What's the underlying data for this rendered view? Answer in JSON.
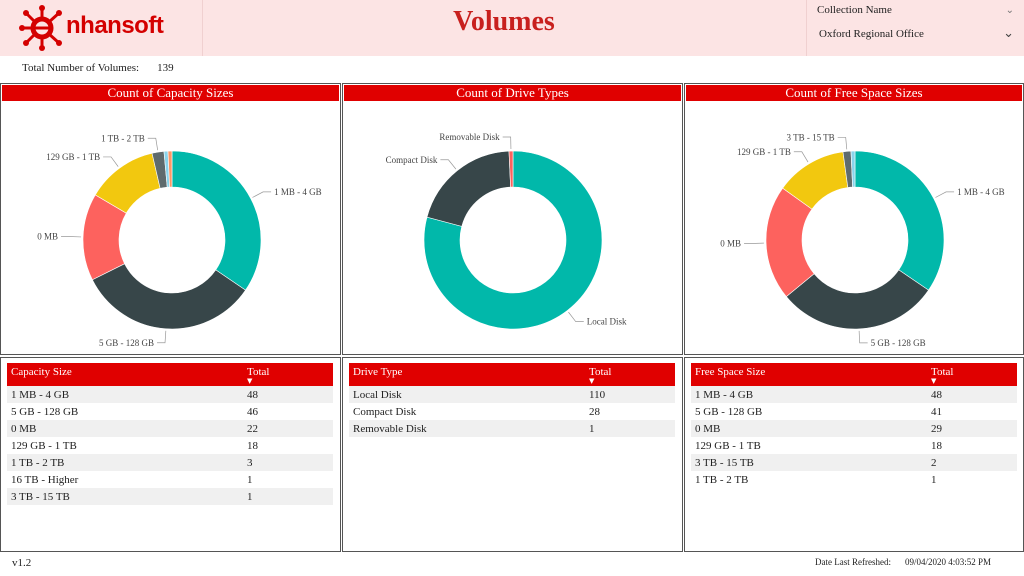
{
  "header": {
    "logo_text": "nhansoft",
    "title": "Volumes"
  },
  "slicer": {
    "label": "Collection Name",
    "value": "Oxford Regional Office"
  },
  "summary": {
    "label": "Total Number of Volumes:",
    "value": "139"
  },
  "colors": {
    "accent": "#e00000",
    "teal": "#01b8aa",
    "dark": "#374649",
    "red": "#fd625e",
    "yellow": "#f2c80f",
    "gray": "#5f6b6d",
    "blue": "#8ad4eb",
    "orange": "#fe9666"
  },
  "charts": {
    "capacity": {
      "title": "Count of Capacity Sizes",
      "slices": [
        {
          "label": "1 MB - 4 GB",
          "value": 48,
          "color": "#01b8aa"
        },
        {
          "label": "5 GB - 128 GB",
          "value": 46,
          "color": "#374649"
        },
        {
          "label": "0 MB",
          "value": 22,
          "color": "#fd625e"
        },
        {
          "label": "129 GB - 1 TB",
          "value": 18,
          "color": "#f2c80f"
        },
        {
          "label": "1 TB - 2 TB",
          "value": 3,
          "color": "#5f6b6d"
        },
        {
          "label": "16 TB - Higher",
          "value": 1,
          "color": "#8ad4eb"
        },
        {
          "label": "3 TB - 15 TB",
          "value": 1,
          "color": "#fe9666"
        }
      ]
    },
    "drive": {
      "title": "Count of Drive Types",
      "slices": [
        {
          "label": "Local Disk",
          "value": 110,
          "color": "#01b8aa"
        },
        {
          "label": "Compact Disk",
          "value": 28,
          "color": "#374649"
        },
        {
          "label": "Removable Disk",
          "value": 1,
          "color": "#fd625e"
        }
      ]
    },
    "free": {
      "title": "Count of Free Space Sizes",
      "slices": [
        {
          "label": "1 MB - 4 GB",
          "value": 48,
          "color": "#01b8aa"
        },
        {
          "label": "5 GB - 128 GB",
          "value": 41,
          "color": "#374649"
        },
        {
          "label": "0 MB",
          "value": 29,
          "color": "#fd625e"
        },
        {
          "label": "129 GB - 1 TB",
          "value": 18,
          "color": "#f2c80f"
        },
        {
          "label": "3 TB - 15 TB",
          "value": 2,
          "color": "#5f6b6d"
        },
        {
          "label": "1 TB - 2 TB",
          "value": 1,
          "color": "#8ad4eb"
        }
      ]
    }
  },
  "tables": {
    "capacity": {
      "headers": [
        "Capacity Size",
        "Total"
      ],
      "rows": [
        [
          "1 MB - 4 GB",
          "48"
        ],
        [
          "5 GB - 128 GB",
          "46"
        ],
        [
          "0 MB",
          "22"
        ],
        [
          "129 GB - 1 TB",
          "18"
        ],
        [
          "1 TB - 2 TB",
          "3"
        ],
        [
          "16 TB - Higher",
          "1"
        ],
        [
          "3 TB - 15 TB",
          "1"
        ]
      ]
    },
    "drive": {
      "headers": [
        "Drive Type",
        "Total"
      ],
      "rows": [
        [
          "Local Disk",
          "110"
        ],
        [
          "Compact Disk",
          "28"
        ],
        [
          "Removable Disk",
          "1"
        ]
      ]
    },
    "free": {
      "headers": [
        "Free Space Size",
        "Total"
      ],
      "rows": [
        [
          "1 MB - 4 GB",
          "48"
        ],
        [
          "5 GB - 128 GB",
          "41"
        ],
        [
          "0 MB",
          "29"
        ],
        [
          "129 GB - 1 TB",
          "18"
        ],
        [
          "3 TB - 15 TB",
          "2"
        ],
        [
          "1 TB - 2 TB",
          "1"
        ]
      ]
    }
  },
  "footer": {
    "version": "v1.2",
    "refreshed_label": "Date Last Refreshed:",
    "refreshed_value": "09/04/2020 4:03:52 PM"
  }
}
